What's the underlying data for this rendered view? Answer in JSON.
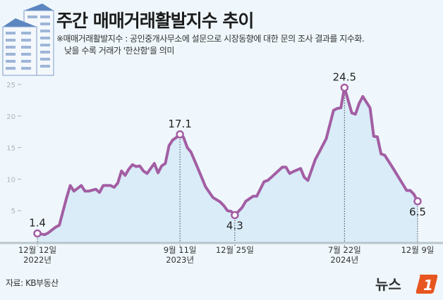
{
  "header": {
    "title": "주간 매매거래활발지수 추이",
    "note_line1": "※매매거래활발지수 : 공인중개사무소에 설문으로 시장동향에 대한 문의 조사 결과를 지수화.",
    "note_line2": "낮을 수록 거래가 '한산함'을 의미"
  },
  "footer": {
    "source": "자료: KB부동산",
    "logo": "뉴스1"
  },
  "colors": {
    "line": "#a35ea3",
    "fill": "#d9ecf8",
    "background": "#eff7fc",
    "logo_accent": "#e8561f"
  },
  "chart_data": {
    "type": "area",
    "title": "주간 매매거래활발지수 추이",
    "ylim": [
      0,
      25
    ],
    "yticks": [
      5,
      10,
      15,
      20,
      25
    ],
    "grid": false,
    "xticks": [
      {
        "date": "2022-12-12",
        "label1": "12월 12일",
        "label2": "2022년"
      },
      {
        "date": "2023-09-11",
        "label1": "9월 11일",
        "label2": "2023년"
      },
      {
        "date": "2023-12-25",
        "label1": "12월 25일",
        "label2": ""
      },
      {
        "date": "2024-07-22",
        "label1": "7월 22일",
        "label2": "2024년"
      },
      {
        "date": "2024-12-09",
        "label1": "12월 9일",
        "label2": ""
      }
    ],
    "annotations": [
      {
        "date": "2022-12-12",
        "value": 1.4,
        "label": "1.4",
        "pos": "above"
      },
      {
        "date": "2023-09-11",
        "value": 17.1,
        "label": "17.1",
        "pos": "above"
      },
      {
        "date": "2023-12-25",
        "value": 4.3,
        "label": "4.3",
        "pos": "below"
      },
      {
        "date": "2024-07-22",
        "value": 24.5,
        "label": "24.5",
        "pos": "above"
      },
      {
        "date": "2024-12-09",
        "value": 6.5,
        "label": "6.5",
        "pos": "below"
      }
    ],
    "points": [
      [
        "2022-12-12",
        1.4
      ],
      [
        "2022-12-26",
        1.2
      ],
      [
        "2023-01-02",
        1.5
      ],
      [
        "2023-01-16",
        2.4
      ],
      [
        "2023-01-23",
        2.7
      ],
      [
        "2023-02-06",
        7.1
      ],
      [
        "2023-02-13",
        9.0
      ],
      [
        "2023-02-20",
        8.1
      ],
      [
        "2023-03-06",
        9.0
      ],
      [
        "2023-03-13",
        8.1
      ],
      [
        "2023-03-20",
        8.1
      ],
      [
        "2023-04-03",
        8.4
      ],
      [
        "2023-04-10",
        7.9
      ],
      [
        "2023-04-17",
        9.0
      ],
      [
        "2023-05-01",
        9.0
      ],
      [
        "2023-05-08",
        8.7
      ],
      [
        "2023-05-15",
        9.4
      ],
      [
        "2023-05-22",
        11.3
      ],
      [
        "2023-05-29",
        10.6
      ],
      [
        "2023-06-05",
        11.6
      ],
      [
        "2023-06-12",
        12.3
      ],
      [
        "2023-06-19",
        12.0
      ],
      [
        "2023-06-26",
        12.1
      ],
      [
        "2023-07-03",
        11.3
      ],
      [
        "2023-07-10",
        10.9
      ],
      [
        "2023-07-24",
        12.5
      ],
      [
        "2023-07-31",
        11.0
      ],
      [
        "2023-08-07",
        12.1
      ],
      [
        "2023-08-14",
        12.5
      ],
      [
        "2023-08-21",
        15.3
      ],
      [
        "2023-08-28",
        16.2
      ],
      [
        "2023-09-04",
        16.6
      ],
      [
        "2023-09-11",
        17.1
      ],
      [
        "2023-09-18",
        16.6
      ],
      [
        "2023-09-25",
        15.0
      ],
      [
        "2023-10-02",
        14.3
      ],
      [
        "2023-10-16",
        11.6
      ],
      [
        "2023-10-30",
        8.8
      ],
      [
        "2023-11-13",
        7.1
      ],
      [
        "2023-11-27",
        6.4
      ],
      [
        "2023-12-04",
        5.8
      ],
      [
        "2023-12-11",
        5.0
      ],
      [
        "2023-12-18",
        4.9
      ],
      [
        "2023-12-25",
        4.3
      ],
      [
        "2024-01-08",
        5.5
      ],
      [
        "2024-01-15",
        6.5
      ],
      [
        "2024-01-29",
        7.3
      ],
      [
        "2024-02-05",
        7.3
      ],
      [
        "2024-02-19",
        9.6
      ],
      [
        "2024-02-26",
        9.8
      ],
      [
        "2024-03-04",
        10.3
      ],
      [
        "2024-03-25",
        11.9
      ],
      [
        "2024-04-01",
        11.9
      ],
      [
        "2024-04-08",
        10.9
      ],
      [
        "2024-04-15",
        11.2
      ],
      [
        "2024-04-29",
        11.7
      ],
      [
        "2024-05-06",
        10.3
      ],
      [
        "2024-05-13",
        9.8
      ],
      [
        "2024-05-27",
        13.1
      ],
      [
        "2024-06-03",
        14.2
      ],
      [
        "2024-06-17",
        16.4
      ],
      [
        "2024-07-01",
        20.9
      ],
      [
        "2024-07-08",
        21.2
      ],
      [
        "2024-07-15",
        21.3
      ],
      [
        "2024-07-22",
        24.5
      ],
      [
        "2024-08-05",
        20.5
      ],
      [
        "2024-08-12",
        20.3
      ],
      [
        "2024-08-19",
        22.0
      ],
      [
        "2024-08-26",
        23.1
      ],
      [
        "2024-09-09",
        21.3
      ],
      [
        "2024-09-16",
        16.8
      ],
      [
        "2024-09-23",
        16.7
      ],
      [
        "2024-09-30",
        14.0
      ],
      [
        "2024-10-07",
        13.8
      ],
      [
        "2024-10-21",
        12.0
      ],
      [
        "2024-11-04",
        10.1
      ],
      [
        "2024-11-18",
        8.2
      ],
      [
        "2024-11-25",
        8.2
      ],
      [
        "2024-12-02",
        7.6
      ],
      [
        "2024-12-09",
        6.5
      ]
    ]
  }
}
